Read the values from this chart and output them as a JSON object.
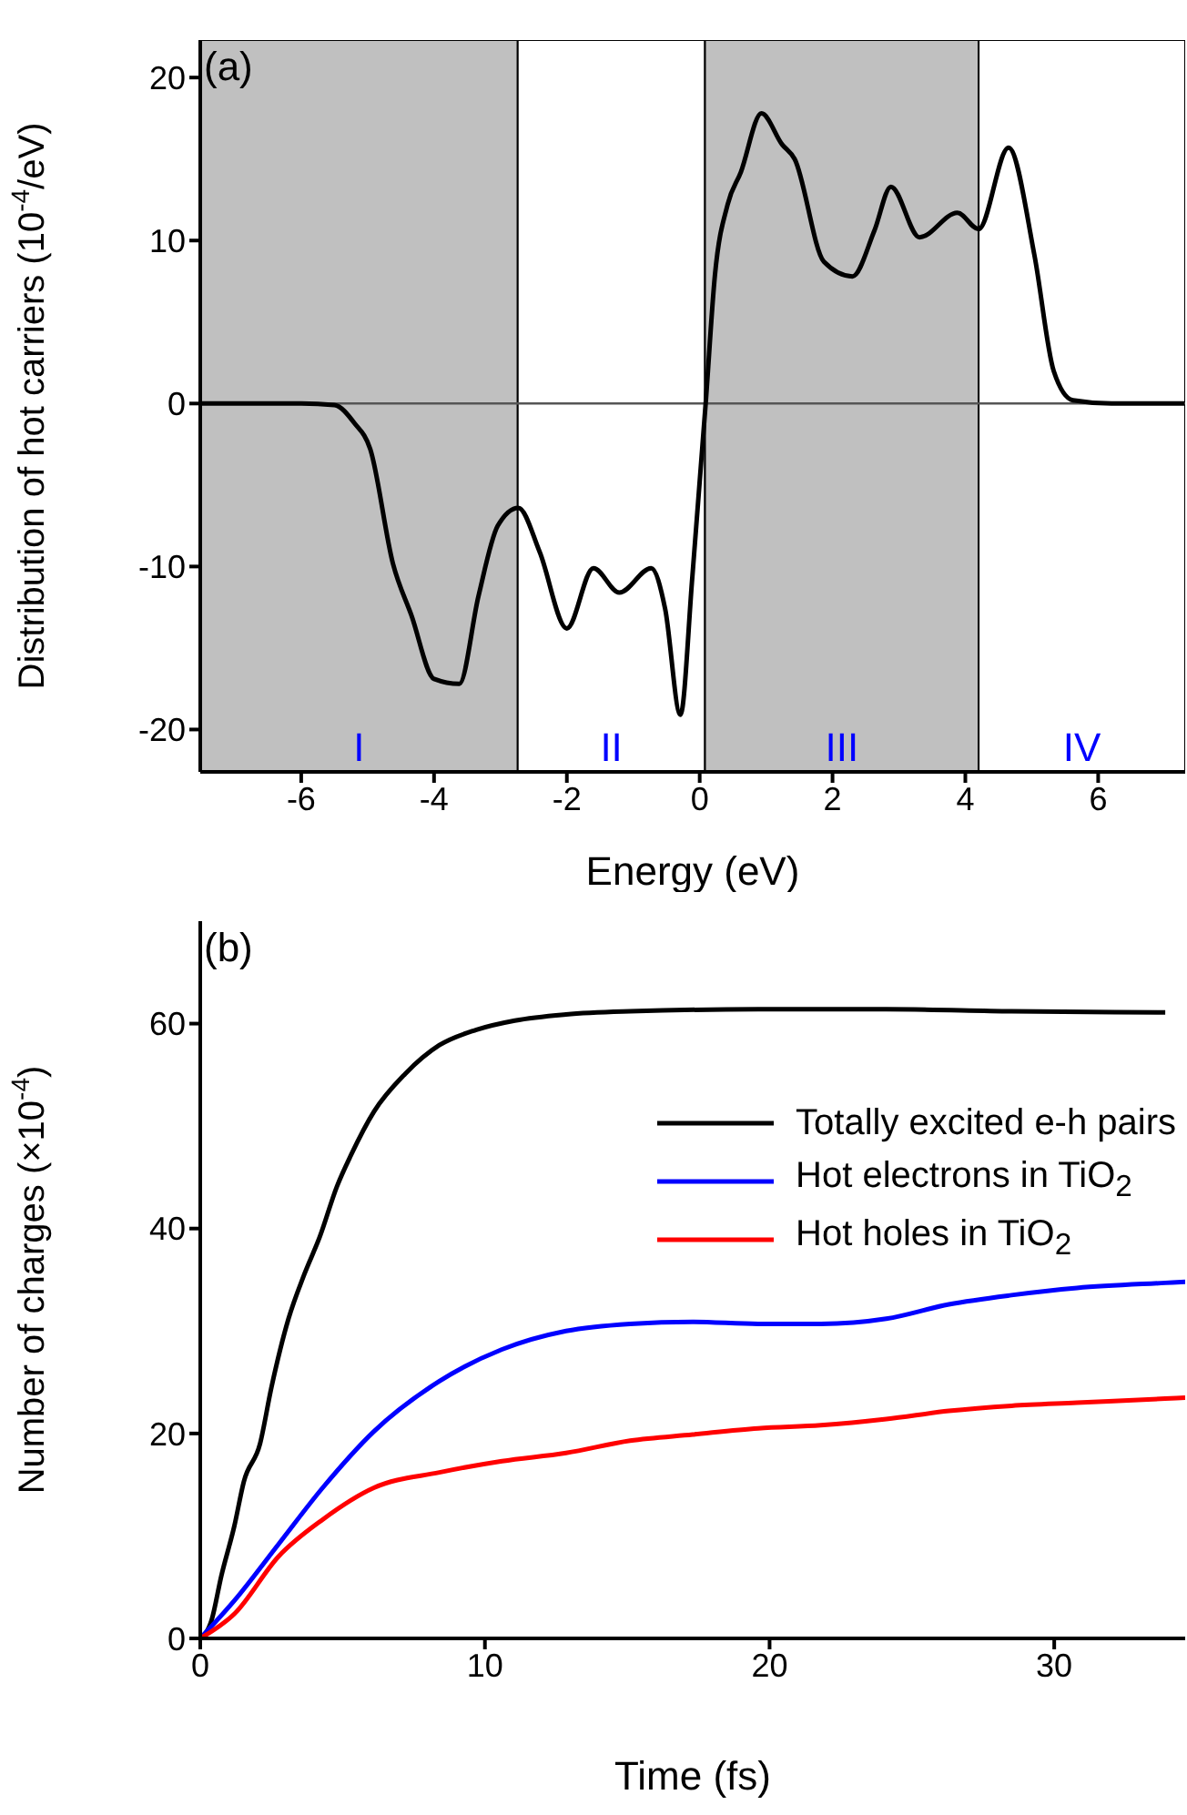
{
  "chart_data": [
    {
      "type": "line",
      "title": "(a)",
      "xlabel": "Energy (eV)",
      "ylabel": "Distribution of hot carriers (10$^{-4}$/eV)",
      "x": [
        -7.5,
        -6,
        -5.5,
        -5.2,
        -4.96,
        -4.62,
        -4.34,
        -4.0,
        -3.62,
        -3.33,
        -3.04,
        -2.73,
        -2.41,
        -2.0,
        -1.6,
        -1.21,
        -0.73,
        -0.52,
        -0.29,
        -0.11,
        0.09,
        0.23,
        0.42,
        0.62,
        0.93,
        1.24,
        1.43,
        1.87,
        2.3,
        2.63,
        2.88,
        3.31,
        3.88,
        4.2,
        4.65,
        5.04,
        5.33,
        5.62,
        6.2,
        7.3
      ],
      "series": [
        {
          "color": "#000000",
          "values": [
            0,
            0,
            -0.1,
            -1.2,
            -2.8,
            -9.8,
            -13,
            -16.9,
            -17.2,
            -11.8,
            -7.5,
            -6.4,
            -9.1,
            -13.8,
            -10.1,
            -11.6,
            -10.1,
            -12.6,
            -19.1,
            -10.6,
            0,
            7.9,
            12.2,
            14.2,
            17.8,
            15.9,
            15,
            8.7,
            7.8,
            10.6,
            13.3,
            10.2,
            11.7,
            10.7,
            15.7,
            9.1,
            2.0,
            0.2,
            0,
            0
          ]
        }
      ],
      "xlim": [
        -7.52,
        7.31
      ],
      "xticks": [
        -6,
        -4,
        -2,
        0,
        2,
        4,
        6
      ],
      "ylim": [
        -22.6,
        22.3
      ],
      "yticks": [
        -20,
        -10,
        0,
        10,
        20
      ],
      "bands": [
        {
          "axis": "x",
          "from": -7.52,
          "to": -2.74,
          "label": "I",
          "color": "#c0c0c0"
        },
        {
          "axis": "x",
          "from": -2.74,
          "to": 0.08,
          "label": "II",
          "color": "#ffffff"
        },
        {
          "axis": "x",
          "from": 0.08,
          "to": 4.2,
          "label": "III",
          "color": "#c0c0c0"
        },
        {
          "axis": "x",
          "from": 4.2,
          "to": 7.31,
          "label": "IV",
          "color": "#ffffff"
        }
      ],
      "ref_lines": [
        {
          "axis": "y",
          "value": 0,
          "color": "#555555"
        }
      ],
      "grid": false,
      "legend": false,
      "marker": "none",
      "line_style": "solid"
    },
    {
      "type": "line",
      "title": "(b)",
      "xlabel": "Time (fs)",
      "ylabel": "Number of charges (×10$^{-4}$)",
      "series": [
        {
          "name": "Totally excited e-h pairs",
          "color": "#000000",
          "x": [
            0,
            0.4,
            0.74,
            1.2,
            1.53,
            2.1,
            2.5,
            3.1,
            3.65,
            4.2,
            4.8,
            5.3,
            6.1,
            7.2,
            8.4,
            9.7,
            11.05,
            12.85,
            15.1,
            19.6,
            24.1,
            28.5,
            33.9
          ],
          "values": [
            0,
            1.8,
            6.1,
            11,
            15.3,
            19,
            24.5,
            31.2,
            35.5,
            39.2,
            44.1,
            47.2,
            51.4,
            55.1,
            57.9,
            59.4,
            60.3,
            60.9,
            61.2,
            61.4,
            61.4,
            61.2,
            61.1
          ]
        },
        {
          "name": "Hot electrons in TiO$_{2}$",
          "color": "#0000ff",
          "x": [
            0,
            1.2,
            2.75,
            4.3,
            6.1,
            8.4,
            10.6,
            12.85,
            15.1,
            17.3,
            19.6,
            21.8,
            24.1,
            26.3,
            28.5,
            30.8,
            33.9,
            34.6
          ],
          "values": [
            0,
            3.7,
            9.2,
            14.7,
            20.2,
            25.1,
            28.2,
            30,
            30.7,
            30.9,
            30.7,
            30.7,
            31.2,
            32.6,
            33.5,
            34.2,
            34.7,
            34.8
          ]
        },
        {
          "name": "Hot holes in TiO$_{2}$",
          "color": "#ff0000",
          "x": [
            0,
            1.2,
            2.75,
            4.3,
            6.1,
            8.4,
            10.6,
            12.85,
            15.1,
            17.3,
            19.6,
            21.8,
            24.1,
            26.3,
            28.5,
            30.8,
            33.9,
            34.6
          ],
          "values": [
            0,
            2.4,
            8,
            11.6,
            14.7,
            16.2,
            17.3,
            18.1,
            19.3,
            19.9,
            20.5,
            20.8,
            21.4,
            22.2,
            22.7,
            23,
            23.4,
            23.5
          ]
        }
      ],
      "xlim": [
        0,
        34.6
      ],
      "xticks": [
        0,
        10,
        20,
        30
      ],
      "ylim": [
        0,
        70
      ],
      "yticks": [
        0,
        20,
        40,
        60
      ],
      "grid": false,
      "legend": "right",
      "marker": "none",
      "line_style": "solid"
    }
  ]
}
